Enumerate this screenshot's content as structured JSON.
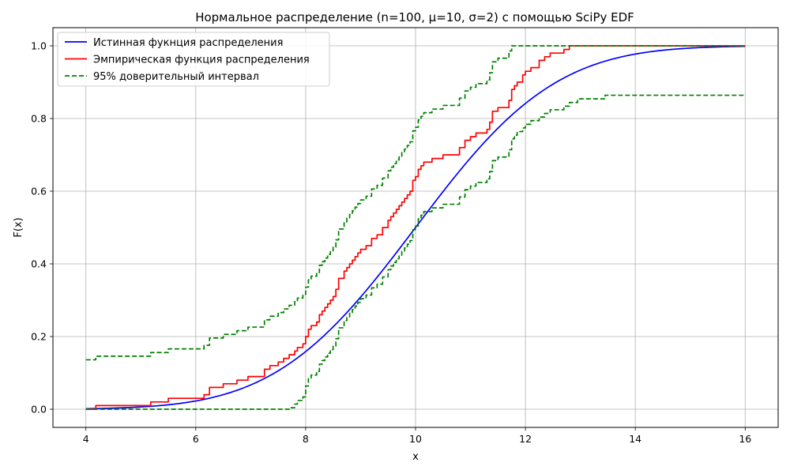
{
  "chart_data": {
    "type": "line",
    "title": "Нормальное распределение (n=100, μ=10, σ=2) с помощью SciPy EDF",
    "xlabel": "x",
    "ylabel": "F(x)",
    "xlim": [
      3.4,
      16.6
    ],
    "ylim": [
      -0.05,
      1.05
    ],
    "xticks": [
      4,
      6,
      8,
      10,
      12,
      14,
      16
    ],
    "yticks": [
      0.0,
      0.2,
      0.4,
      0.6,
      0.8,
      1.0
    ],
    "grid": true,
    "legend_position": "upper-left",
    "normal_params": {
      "mu": 10,
      "sigma": 2,
      "n": 100
    },
    "series": [
      {
        "name": "Истинная фукнция распределения",
        "style": "solid",
        "color": "#0000ff",
        "kind": "normal_cdf",
        "x_range": [
          4,
          16
        ]
      },
      {
        "name": "Эмпирическая функция распределения",
        "style": "solid",
        "color": "#ff0000",
        "kind": "step",
        "x": [
          4.0,
          4.18,
          5.18,
          5.5,
          6.15,
          6.25,
          6.5,
          6.75,
          6.95,
          7.25,
          7.35,
          7.5,
          7.6,
          7.7,
          7.8,
          7.85,
          7.95,
          8.0,
          8.05,
          8.1,
          8.2,
          8.25,
          8.3,
          8.35,
          8.4,
          8.45,
          8.5,
          8.55,
          8.6,
          8.7,
          8.75,
          8.8,
          8.85,
          8.9,
          8.95,
          9.0,
          9.1,
          9.2,
          9.3,
          9.4,
          9.5,
          9.55,
          9.6,
          9.65,
          9.7,
          9.75,
          9.8,
          9.85,
          9.9,
          9.95,
          10.0,
          10.05,
          10.1,
          10.15,
          10.3,
          10.5,
          10.8,
          10.9,
          11.0,
          11.1,
          11.3,
          11.35,
          11.4,
          11.5,
          11.7,
          11.75,
          11.8,
          11.85,
          11.95,
          12.0,
          12.1,
          12.25,
          12.35,
          12.45,
          12.7,
          12.8,
          12.95,
          13.45,
          13.55,
          13.6,
          13.9,
          14.0,
          14.1,
          14.35,
          16.0
        ],
        "y": [
          0.0,
          0.01,
          0.02,
          0.03,
          0.04,
          0.06,
          0.07,
          0.08,
          0.09,
          0.11,
          0.12,
          0.13,
          0.14,
          0.15,
          0.16,
          0.17,
          0.18,
          0.2,
          0.22,
          0.23,
          0.24,
          0.26,
          0.27,
          0.28,
          0.29,
          0.3,
          0.31,
          0.33,
          0.36,
          0.38,
          0.39,
          0.4,
          0.41,
          0.42,
          0.43,
          0.44,
          0.45,
          0.47,
          0.48,
          0.5,
          0.52,
          0.53,
          0.54,
          0.55,
          0.56,
          0.57,
          0.58,
          0.59,
          0.6,
          0.63,
          0.64,
          0.66,
          0.67,
          0.68,
          0.69,
          0.7,
          0.72,
          0.74,
          0.75,
          0.76,
          0.77,
          0.79,
          0.82,
          0.83,
          0.85,
          0.88,
          0.89,
          0.9,
          0.92,
          0.93,
          0.94,
          0.96,
          0.97,
          0.98,
          0.99,
          1.0,
          1.0,
          1.0,
          1.0,
          1.0,
          1.0,
          1.0,
          1.0,
          1.0,
          1.0
        ]
      },
      {
        "name": "95% доверительный интервал",
        "style": "dashed",
        "color": "#008000",
        "kind": "band_upper",
        "x": [
          4.0,
          4.18,
          5.18,
          5.5,
          6.15,
          6.25,
          6.5,
          6.75,
          6.95,
          7.25,
          7.35,
          7.5,
          7.6,
          7.7,
          7.8,
          7.85,
          7.95,
          8.0,
          8.05,
          8.1,
          8.2,
          8.25,
          8.3,
          8.35,
          8.4,
          8.45,
          8.5,
          8.55,
          8.6,
          8.7,
          8.75,
          8.8,
          8.85,
          8.9,
          8.95,
          9.0,
          9.1,
          9.2,
          9.3,
          9.4,
          9.5,
          9.55,
          9.6,
          9.65,
          9.7,
          9.75,
          9.8,
          9.85,
          9.9,
          9.95,
          10.0,
          10.05,
          10.1,
          10.15,
          10.3,
          10.5,
          10.8,
          10.9,
          11.0,
          11.1,
          11.3,
          11.35,
          11.4,
          11.5,
          11.7,
          11.75,
          11.8,
          11.85,
          11.95,
          12.0,
          12.1,
          12.25,
          16.0
        ],
        "y": [
          0.136,
          0.146,
          0.156,
          0.166,
          0.176,
          0.196,
          0.206,
          0.216,
          0.226,
          0.246,
          0.256,
          0.266,
          0.276,
          0.286,
          0.296,
          0.306,
          0.316,
          0.336,
          0.356,
          0.366,
          0.376,
          0.396,
          0.406,
          0.416,
          0.426,
          0.436,
          0.446,
          0.466,
          0.496,
          0.516,
          0.526,
          0.536,
          0.546,
          0.556,
          0.566,
          0.576,
          0.586,
          0.606,
          0.616,
          0.636,
          0.656,
          0.666,
          0.676,
          0.686,
          0.696,
          0.706,
          0.716,
          0.726,
          0.736,
          0.766,
          0.776,
          0.796,
          0.806,
          0.816,
          0.826,
          0.836,
          0.856,
          0.876,
          0.886,
          0.896,
          0.906,
          0.926,
          0.956,
          0.966,
          0.986,
          1.0,
          1.0,
          1.0,
          1.0,
          1.0,
          1.0,
          1.0,
          1.0
        ]
      },
      {
        "name": "",
        "style": "dashed",
        "color": "#008000",
        "kind": "band_lower",
        "x": [
          4.0,
          7.7,
          7.8,
          7.85,
          7.95,
          8.0,
          8.05,
          8.1,
          8.2,
          8.25,
          8.3,
          8.35,
          8.4,
          8.45,
          8.5,
          8.55,
          8.6,
          8.7,
          8.75,
          8.8,
          8.85,
          8.9,
          8.95,
          9.0,
          9.1,
          9.2,
          9.3,
          9.4,
          9.5,
          9.55,
          9.6,
          9.65,
          9.7,
          9.75,
          9.8,
          9.85,
          9.9,
          9.95,
          10.0,
          10.05,
          10.1,
          10.15,
          10.3,
          10.5,
          10.8,
          10.9,
          11.0,
          11.1,
          11.3,
          11.35,
          11.4,
          11.5,
          11.7,
          11.75,
          11.8,
          11.85,
          11.95,
          12.0,
          12.1,
          12.25,
          12.35,
          12.45,
          12.7,
          12.8,
          12.95,
          13.45,
          13.55,
          13.6,
          13.9,
          14.0,
          14.1,
          14.35,
          16.0
        ],
        "y": [
          0.0,
          0.004,
          0.014,
          0.024,
          0.034,
          0.064,
          0.084,
          0.094,
          0.104,
          0.124,
          0.134,
          0.144,
          0.154,
          0.164,
          0.174,
          0.194,
          0.224,
          0.244,
          0.254,
          0.264,
          0.274,
          0.284,
          0.294,
          0.304,
          0.314,
          0.334,
          0.344,
          0.364,
          0.384,
          0.394,
          0.404,
          0.414,
          0.424,
          0.434,
          0.444,
          0.454,
          0.464,
          0.494,
          0.504,
          0.524,
          0.534,
          0.544,
          0.554,
          0.564,
          0.584,
          0.604,
          0.614,
          0.624,
          0.634,
          0.654,
          0.684,
          0.694,
          0.714,
          0.744,
          0.754,
          0.764,
          0.774,
          0.784,
          0.794,
          0.804,
          0.814,
          0.824,
          0.834,
          0.844,
          0.854,
          0.864,
          0.864,
          0.864,
          0.864,
          0.864,
          0.864,
          0.864,
          0.864
        ]
      }
    ]
  }
}
